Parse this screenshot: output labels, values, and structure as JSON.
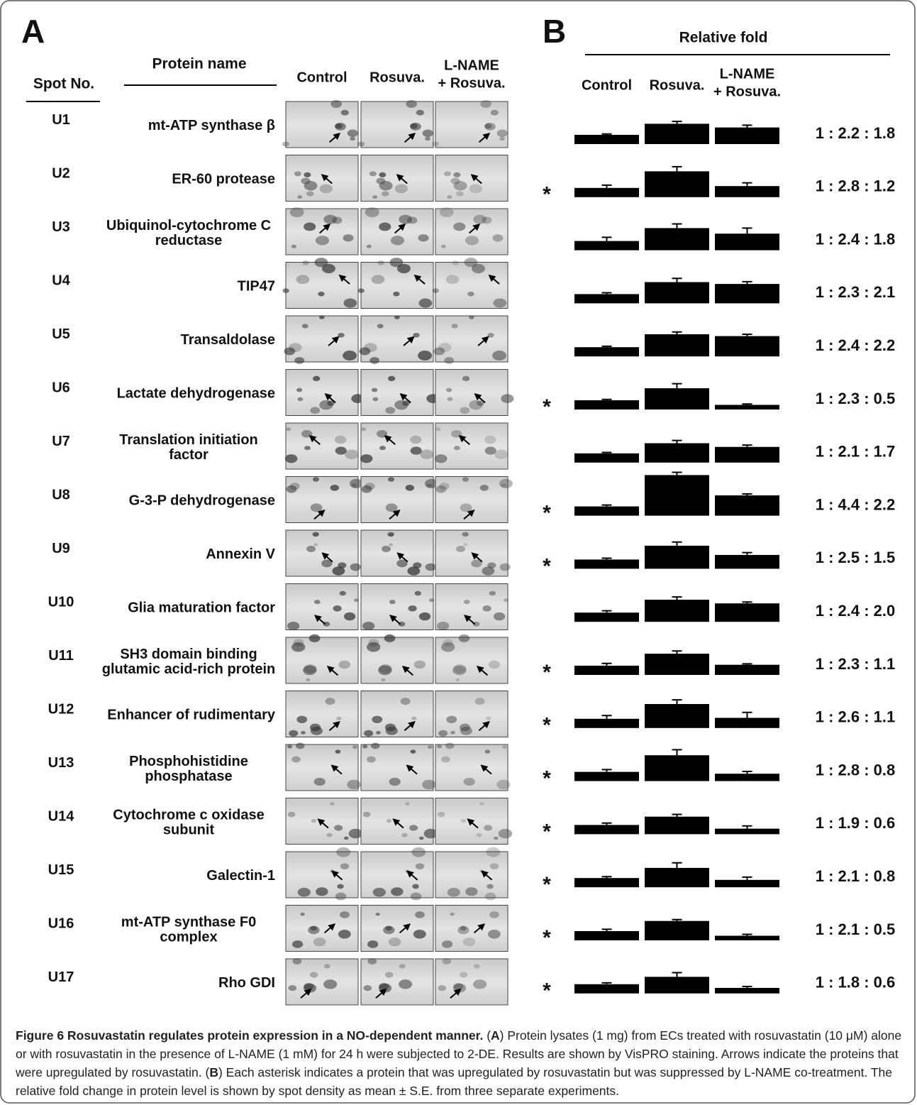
{
  "panel_a": {
    "label": "A",
    "spot_header": "Spot No.",
    "name_header": "Protein name",
    "columns": [
      [
        "Control"
      ],
      [
        "Rosuva."
      ],
      [
        "L-NAME",
        "+ Rosuva."
      ]
    ],
    "rows": [
      {
        "spot": "U1",
        "name": [
          "mt-ATP synthase β"
        ]
      },
      {
        "spot": "U2",
        "name": [
          "ER-60 protease"
        ]
      },
      {
        "spot": "U3",
        "name": [
          "Ubiquinol-cytochrome C",
          "reductase"
        ]
      },
      {
        "spot": "U4",
        "name": [
          "TIP47"
        ]
      },
      {
        "spot": "U5",
        "name": [
          "Transaldolase"
        ]
      },
      {
        "spot": "U6",
        "name": [
          "Lactate dehydrogenase"
        ]
      },
      {
        "spot": "U7",
        "name": [
          "Translation initiation",
          "factor"
        ]
      },
      {
        "spot": "U8",
        "name": [
          "G-3-P dehydrogenase"
        ]
      },
      {
        "spot": "U9",
        "name": [
          "Annexin V"
        ]
      },
      {
        "spot": "U10",
        "name": [
          "Glia maturation factor"
        ]
      },
      {
        "spot": "U11",
        "name": [
          "SH3 domain binding",
          "glutamic acid-rich protein"
        ]
      },
      {
        "spot": "U12",
        "name": [
          "Enhancer of rudimentary"
        ]
      },
      {
        "spot": "U13",
        "name": [
          "Phosphohistidine",
          "phosphatase"
        ]
      },
      {
        "spot": "U14",
        "name": [
          "Cytochrome c oxidase",
          "subunit"
        ]
      },
      {
        "spot": "U15",
        "name": [
          "Galectin-1"
        ]
      },
      {
        "spot": "U16",
        "name": [
          "mt-ATP synthase F0",
          "complex"
        ]
      },
      {
        "spot": "U17",
        "name": [
          "Rho GDI"
        ]
      }
    ]
  },
  "panel_b": {
    "label": "B",
    "title": "Relative fold",
    "asterisk": "*",
    "columns": [
      [
        "Control"
      ],
      [
        "Rosuva."
      ],
      [
        "L-NAME",
        "+ Rosuva."
      ]
    ],
    "rows": [
      {
        "significant": false,
        "values": [
          1,
          2.2,
          1.8
        ],
        "errors": [
          0.1,
          0.25,
          0.25
        ],
        "ratio": "1 : 2.2 : 1.8"
      },
      {
        "significant": true,
        "values": [
          1,
          2.8,
          1.2
        ],
        "errors": [
          0.3,
          0.5,
          0.35
        ],
        "ratio": "1 : 2.8 : 1.2"
      },
      {
        "significant": false,
        "values": [
          1,
          2.4,
          1.8
        ],
        "errors": [
          0.4,
          0.45,
          0.6
        ],
        "ratio": "1 : 2.4 : 1.8"
      },
      {
        "significant": false,
        "values": [
          1,
          2.3,
          2.1
        ],
        "errors": [
          0.15,
          0.4,
          0.25
        ],
        "ratio": "1 : 2.3 : 2.1"
      },
      {
        "significant": false,
        "values": [
          1,
          2.4,
          2.2
        ],
        "errors": [
          0.1,
          0.25,
          0.2
        ],
        "ratio": "1 : 2.4 : 2.2"
      },
      {
        "significant": true,
        "values": [
          1,
          2.3,
          0.5
        ],
        "errors": [
          0.1,
          0.5,
          0.1
        ],
        "ratio": "1 : 2.3 : 0.5"
      },
      {
        "significant": false,
        "values": [
          1,
          2.1,
          1.7
        ],
        "errors": [
          0.1,
          0.3,
          0.2
        ],
        "ratio": "1 : 2.1 : 1.7"
      },
      {
        "significant": true,
        "values": [
          1,
          4.4,
          2.2
        ],
        "errors": [
          0.15,
          0.3,
          0.15
        ],
        "ratio": "1 : 4.4 : 2.2"
      },
      {
        "significant": true,
        "values": [
          1,
          2.5,
          1.5
        ],
        "errors": [
          0.15,
          0.4,
          0.25
        ],
        "ratio": "1 : 2.5 : 1.5"
      },
      {
        "significant": false,
        "values": [
          1,
          2.4,
          2.0
        ],
        "errors": [
          0.2,
          0.3,
          0.15
        ],
        "ratio": "1 : 2.4 : 2.0"
      },
      {
        "significant": true,
        "values": [
          1,
          2.3,
          1.1
        ],
        "errors": [
          0.25,
          0.3,
          0.1
        ],
        "ratio": "1 : 2.3 : 1.1"
      },
      {
        "significant": true,
        "values": [
          1,
          2.6,
          1.1
        ],
        "errors": [
          0.35,
          0.45,
          0.6
        ],
        "ratio": "1 : 2.6 : 1.1"
      },
      {
        "significant": true,
        "values": [
          1,
          2.8,
          0.8
        ],
        "errors": [
          0.25,
          0.6,
          0.25
        ],
        "ratio": "1 : 2.8 : 0.8"
      },
      {
        "significant": true,
        "values": [
          1,
          1.9,
          0.6
        ],
        "errors": [
          0.2,
          0.25,
          0.3
        ],
        "ratio": "1 : 1.9 : 0.6"
      },
      {
        "significant": true,
        "values": [
          1,
          2.1,
          0.8
        ],
        "errors": [
          0.15,
          0.55,
          0.3
        ],
        "ratio": "1 : 2.1 : 0.8"
      },
      {
        "significant": true,
        "values": [
          1,
          2.1,
          0.5
        ],
        "errors": [
          0.2,
          0.15,
          0.15
        ],
        "ratio": "1 : 2.1 : 0.5"
      },
      {
        "significant": true,
        "values": [
          1,
          1.8,
          0.6
        ],
        "errors": [
          0.15,
          0.45,
          0.15
        ],
        "ratio": "1 : 1.8 : 0.6"
      }
    ]
  },
  "caption": [
    {
      "text": "Figure 6 Rosuvastatin regulates protein expression in a NO-dependent manner.",
      "bold": true
    },
    {
      "text": " (",
      "bold": false
    },
    {
      "text": "A",
      "bold": true
    },
    {
      "text": ") Protein lysates (1 mg) from ECs treated with rosuvastatin (10 μM) alone or with rosuvastatin in the presence of L-NAME (1 mM) for 24 h were subjected to 2-DE. Results are shown by VisPRO staining. Arrows indicate the proteins that were upregulated by rosuvastatin. (",
      "bold": false
    },
    {
      "text": "B",
      "bold": true
    },
    {
      "text": ") Each asterisk indicates a protein that was upregulated by rosuvastatin but was suppressed by L-NAME co-treatment. The relative fold change in protein level is shown by spot density as mean ± S.E. from three separate experiments.",
      "bold": false
    }
  ]
}
